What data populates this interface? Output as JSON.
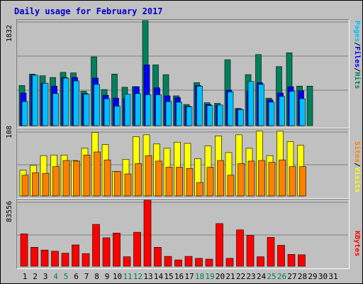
{
  "title": "Daily usage for February 2017",
  "colors": {
    "hits": "#00805c",
    "files": "#0000ff",
    "pages": "#00c0ff",
    "visits": "#ffff00",
    "sites": "#ff8000",
    "kbytes": "#ff0000",
    "weekend": "#00805c",
    "weekday": "#000000"
  },
  "chart_data": [
    {
      "type": "bar",
      "categories": [
        "1",
        "2",
        "3",
        "4",
        "5",
        "6",
        "7",
        "8",
        "9",
        "10",
        "11",
        "12",
        "13",
        "14",
        "15",
        "16",
        "17",
        "18",
        "19",
        "20",
        "21",
        "22",
        "23",
        "24",
        "25",
        "26",
        "27",
        "28",
        "29",
        "30",
        "31"
      ],
      "ymax_label": "1832",
      "ylim": [
        0,
        1832
      ],
      "series": [
        {
          "name": "Hits",
          "key": "hits",
          "values": [
            700,
            900,
            870,
            840,
            930,
            920,
            600,
            1200,
            630,
            900,
            670,
            680,
            1832,
            1060,
            890,
            520,
            370,
            750,
            400,
            390,
            1150,
            300,
            890,
            1240,
            480,
            1030,
            1270,
            690,
            690,
            0,
            0
          ]
        },
        {
          "name": "Files",
          "key": "files",
          "values": [
            570,
            880,
            740,
            690,
            840,
            840,
            560,
            830,
            530,
            480,
            470,
            680,
            1060,
            660,
            520,
            490,
            340,
            700,
            370,
            360,
            620,
            290,
            600,
            750,
            450,
            570,
            680,
            610,
            0,
            0,
            0
          ]
        },
        {
          "name": "Pages",
          "key": "pages",
          "values": [
            420,
            880,
            740,
            560,
            830,
            780,
            550,
            720,
            470,
            340,
            550,
            560,
            540,
            540,
            420,
            410,
            330,
            690,
            350,
            360,
            590,
            280,
            770,
            720,
            410,
            510,
            600,
            470,
            0,
            0,
            0
          ]
        }
      ],
      "legend": [
        "Pages",
        "Files",
        "Hits"
      ]
    },
    {
      "type": "bar",
      "categories": [
        "1",
        "2",
        "3",
        "4",
        "5",
        "6",
        "7",
        "8",
        "9",
        "10",
        "11",
        "12",
        "13",
        "14",
        "15",
        "16",
        "17",
        "18",
        "19",
        "20",
        "21",
        "22",
        "23",
        "24",
        "25",
        "26",
        "27",
        "28",
        "29",
        "30",
        "31"
      ],
      "ymax_label": "108",
      "ylim": [
        0,
        108
      ],
      "series": [
        {
          "name": "Visits",
          "key": "visits",
          "values": [
            42,
            50,
            66,
            67,
            67,
            58,
            78,
            104,
            84,
            40,
            60,
            97,
            100,
            85,
            78,
            88,
            86,
            61,
            82,
            98,
            71,
            100,
            78,
            106,
            66,
            106,
            89,
            83,
            0,
            0,
            0
          ]
        },
        {
          "name": "Sites",
          "key": "sites",
          "values": [
            34,
            38,
            37,
            48,
            58,
            57,
            67,
            72,
            59,
            40,
            36,
            53,
            66,
            57,
            47,
            47,
            45,
            22,
            47,
            58,
            34,
            53,
            57,
            58,
            55,
            59,
            48,
            48,
            0,
            0,
            0
          ]
        }
      ],
      "legend": [
        "Sites",
        "Visits"
      ]
    },
    {
      "type": "bar",
      "categories": [
        "1",
        "2",
        "3",
        "4",
        "5",
        "6",
        "7",
        "8",
        "9",
        "10",
        "11",
        "12",
        "13",
        "14",
        "15",
        "16",
        "17",
        "18",
        "19",
        "20",
        "21",
        "22",
        "23",
        "24",
        "25",
        "26",
        "27",
        "28",
        "29",
        "30",
        "31"
      ],
      "ymax_label": "83556",
      "ylim": [
        0,
        83556
      ],
      "series": [
        {
          "name": "KBytes",
          "key": "kbytes",
          "values": [
            41000,
            24000,
            20500,
            19000,
            16500,
            27000,
            16000,
            53000,
            36000,
            42000,
            12000,
            43000,
            83556,
            24000,
            12500,
            8000,
            12500,
            10000,
            9000,
            54000,
            10000,
            46000,
            39000,
            12000,
            36500,
            26500,
            15000,
            14500,
            0,
            0,
            0
          ]
        }
      ],
      "legend": [
        "KBytes"
      ]
    }
  ],
  "legend_labels": {
    "top": [
      {
        "text": "Pages",
        "color": "#00c0ff"
      },
      {
        "text": "/",
        "color": "#000000"
      },
      {
        "text": "Files",
        "color": "#0000ff"
      },
      {
        "text": "/",
        "color": "#000000"
      },
      {
        "text": "Hits",
        "color": "#00805c"
      }
    ],
    "middle": [
      {
        "text": "Sites",
        "color": "#ff8000"
      },
      {
        "text": "/",
        "color": "#000000"
      },
      {
        "text": "Visits",
        "color": "#ffff00"
      }
    ],
    "bottom": [
      {
        "text": "KBytes",
        "color": "#ff0000"
      }
    ]
  },
  "weekend_days": [
    "4",
    "5",
    "11",
    "12",
    "18",
    "19",
    "25",
    "26"
  ]
}
